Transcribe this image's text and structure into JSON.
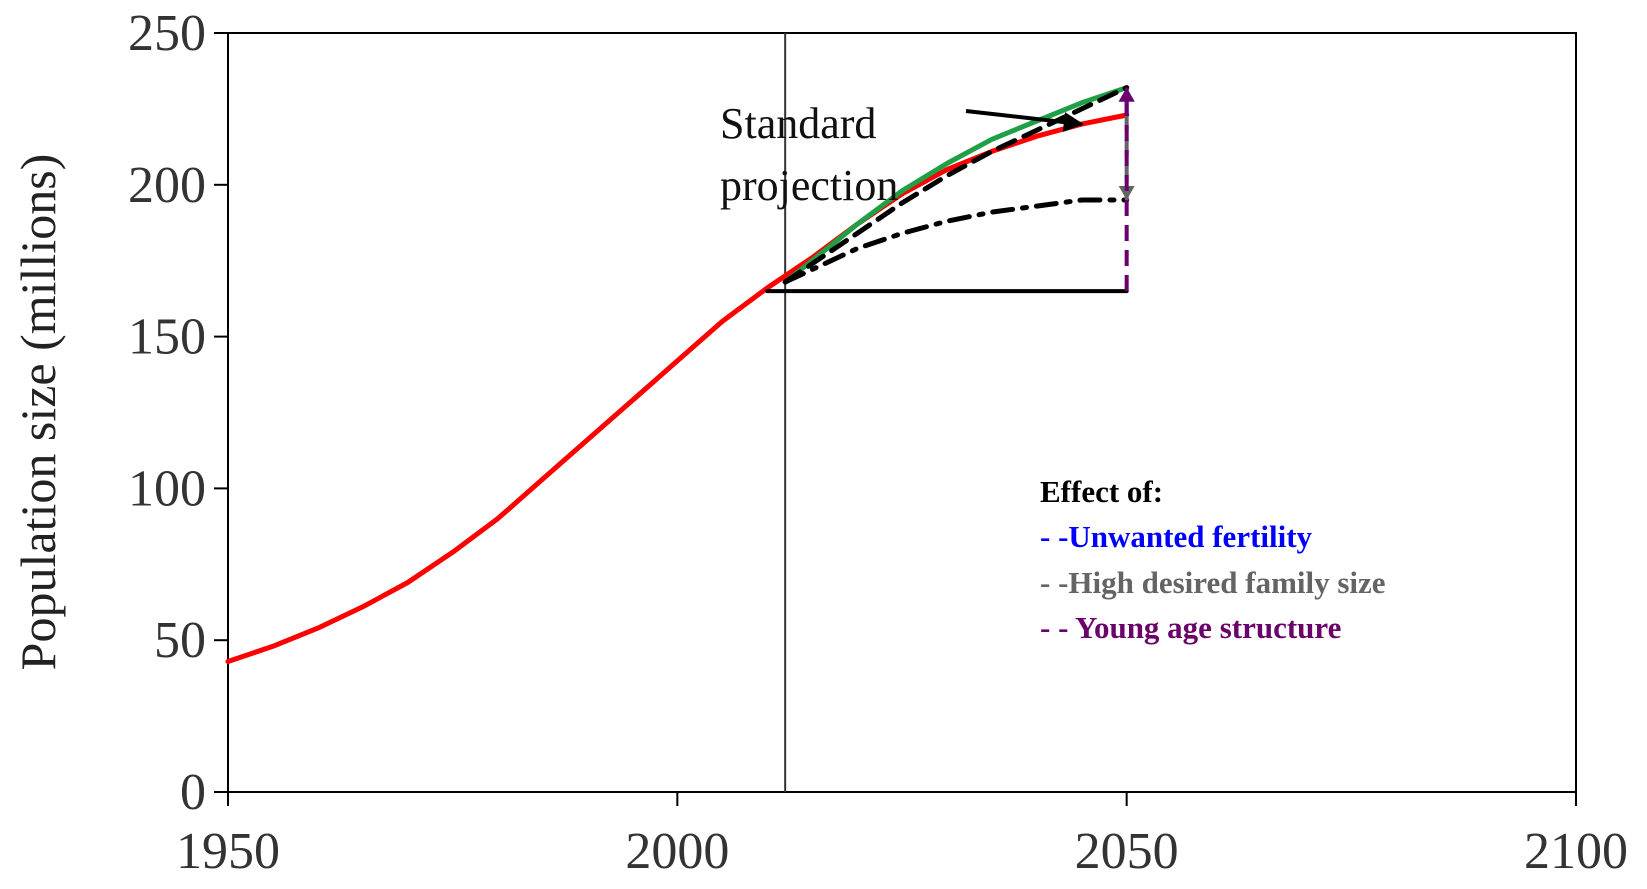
{
  "chart_data": {
    "type": "line",
    "ylabel": "Population size (millions)",
    "xlabel": "",
    "xlim": [
      1950,
      2100
    ],
    "ylim": [
      0,
      250
    ],
    "x_ticks": [
      1950,
      2000,
      2050,
      2100
    ],
    "y_ticks": [
      0,
      50,
      100,
      150,
      200,
      250
    ],
    "grid": false,
    "reference_line_x": 2012,
    "colors": {
      "red": "#ff0000",
      "green": "#1fa046",
      "black": "#000000",
      "blue": "#0000ff",
      "gray": "#646464",
      "purple": "#6b006b"
    },
    "series": [
      {
        "color": "red",
        "style": "solid",
        "x": [
          1950,
          1955,
          1960,
          1965,
          1970,
          1975,
          1980,
          1985,
          1990,
          1995,
          2000,
          2005,
          2010,
          2015,
          2020,
          2025,
          2030,
          2035,
          2040,
          2045,
          2050
        ],
        "values": [
          43,
          48,
          54,
          61,
          69,
          79,
          90,
          103,
          116,
          129,
          142,
          155,
          166,
          176,
          187,
          197,
          205,
          211,
          216,
          220,
          223
        ]
      },
      {
        "color": "green",
        "style": "solid",
        "x": [
          2012,
          2015,
          2020,
          2025,
          2030,
          2035,
          2040,
          2045,
          2050
        ],
        "values": [
          168,
          175,
          187,
          198,
          207,
          215,
          221,
          227,
          232
        ]
      },
      {
        "color": "black",
        "style": "dashed",
        "x": [
          2012,
          2020,
          2025,
          2030,
          2035,
          2040,
          2045,
          2050
        ],
        "values": [
          168,
          184,
          194,
          203,
          211,
          218,
          225,
          232
        ]
      },
      {
        "color": "black",
        "style": "dash-dot",
        "x": [
          2012,
          2020,
          2025,
          2030,
          2035,
          2040,
          2045,
          2050
        ],
        "values": [
          168,
          179,
          184,
          188,
          191,
          193,
          195,
          195
        ]
      },
      {
        "color": "black",
        "style": "solid",
        "x": [
          2010,
          2050
        ],
        "values": [
          165,
          165
        ]
      }
    ],
    "effect_arrows": [
      {
        "color": "blue",
        "x": 2050,
        "from": 223,
        "to": 232
      },
      {
        "color": "gray",
        "x": 2050,
        "from": 223,
        "to": 195
      },
      {
        "color": "purple",
        "x": 2050,
        "from": 165,
        "to": 232
      }
    ],
    "annotation": {
      "lines": [
        "Standard",
        "projection"
      ],
      "points_to": {
        "x": 2045,
        "y": 220
      }
    },
    "legend": {
      "position": "right",
      "title": "Effect of:",
      "entries": [
        {
          "marker": "- -",
          "label": "Unwanted fertility",
          "color": "blue"
        },
        {
          "marker": "- -",
          "label": "High desired family size",
          "color": "gray"
        },
        {
          "marker": "- - ",
          "label": "Young age structure",
          "color": "purple"
        }
      ]
    }
  }
}
